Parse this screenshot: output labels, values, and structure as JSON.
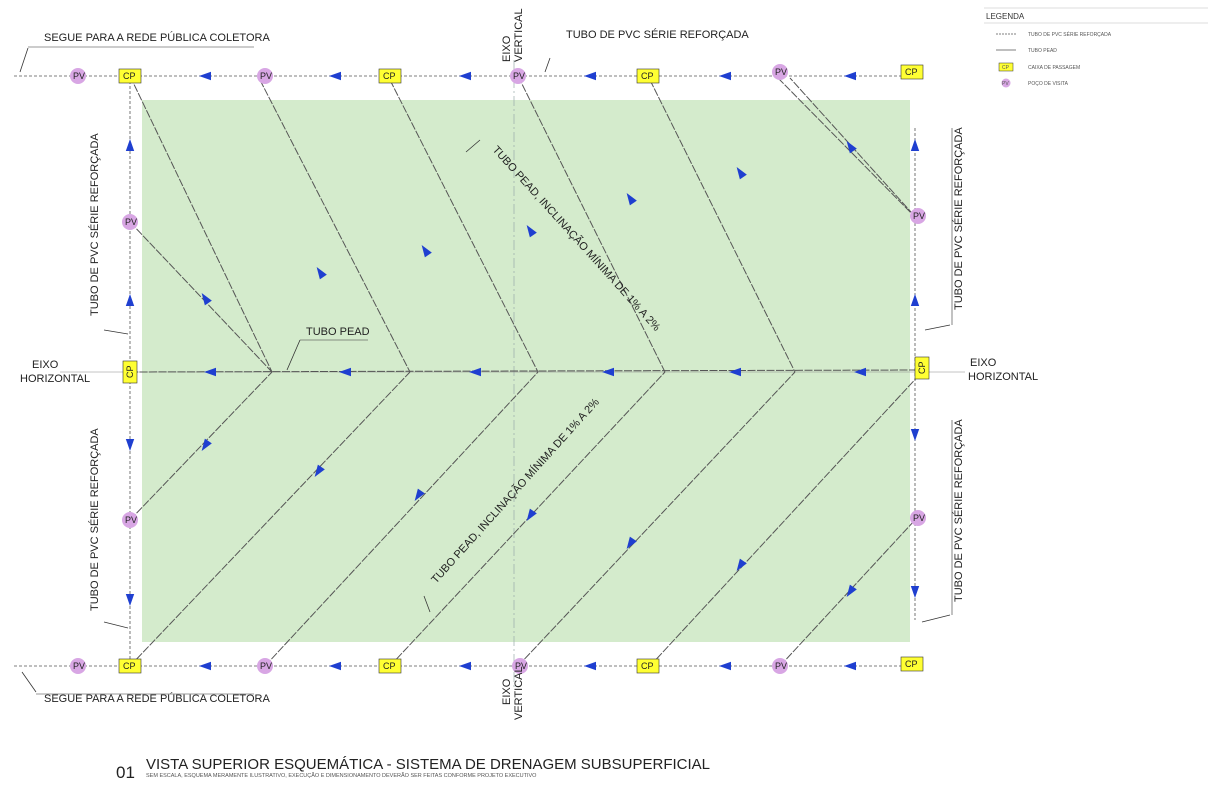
{
  "colors": {
    "field": "#d4ebcc",
    "arrow": "#1f3fd0",
    "pv": "#d8a6e4",
    "cp": "#ffff33",
    "line": "#555555"
  },
  "labels": {
    "outlet_top": "SEGUE PARA A REDE PÚBLICA COLETORA",
    "outlet_bottom": "SEGUE PARA A REDE PÚBLICA COLETORA",
    "pvc_top": "TUBO DE PVC SÉRIE REFORÇADA",
    "eixo_vertical_top": [
      "EIXO",
      "VERTICAL"
    ],
    "eixo_vertical_bottom": [
      "EIXO",
      "VERTICAL"
    ],
    "eixo_horizontal_left": [
      "EIXO",
      "HORIZONTAL"
    ],
    "eixo_horizontal_right": [
      "EIXO",
      "HORIZONTAL"
    ],
    "pvc_left_upper": "TUBO DE PVC SÉRIE REFORÇADA",
    "pvc_left_lower": "TUBO DE PVC SÉRIE REFORÇADA",
    "pvc_right_upper": "TUBO DE PVC SÉRIE REFORÇADA",
    "pvc_right_lower": "TUBO DE PVC SÉRIE REFORÇADA",
    "tubo_pead": "TUBO PEAD",
    "pead_incl_upper": "TUBO PEAD, INCLINAÇÃO MÍNIMA DE 1% A 2%",
    "pead_incl_lower": "TUBO PEAD, INCLINAÇÃO MÍNIMA DE 1% A 2%"
  },
  "node_labels": {
    "pv": "PV",
    "cp": "CP"
  },
  "legend": {
    "title": "LEGENDA",
    "items": [
      "TUBO DE PVC SÉRIE REFORÇADA",
      "TUBO PEAD",
      "CAIXA DE PASSAGEM",
      "POÇO DE VISITA"
    ],
    "cp_symbol": "CP",
    "pv_symbol": "PV"
  },
  "title": {
    "number": "01",
    "main": "VISTA SUPERIOR ESQUEMÁTICA - SISTEMA DE DRENAGEM SUBSUPERFICIAL",
    "subtitle": "SEM ESCALA, ESQUEMA MERAMENTE ILUSTRATIVO, EXECUÇÃO E DIMENSIONAMENTO DEVERÃO SER FEITAS CONFORME PROJETO EXECUTIVO"
  }
}
